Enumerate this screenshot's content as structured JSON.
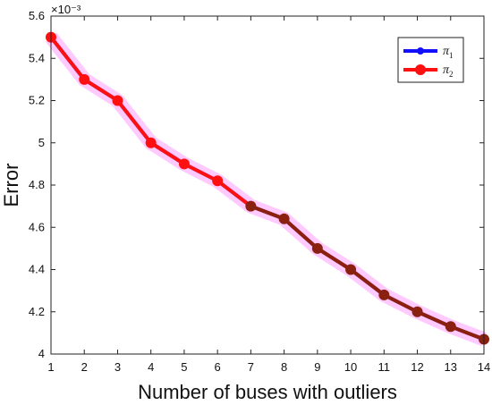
{
  "chart_data": {
    "type": "line",
    "title": "",
    "xlabel": "Number of buses with outliers",
    "ylabel": "Error",
    "y_exponent_label": "×10⁻³",
    "xlim": [
      1,
      14
    ],
    "ylim": [
      4.0,
      5.6
    ],
    "x_ticks": [
      "1",
      "2",
      "3",
      "4",
      "5",
      "6",
      "7",
      "8",
      "9",
      "10",
      "11",
      "12",
      "13",
      "14"
    ],
    "y_ticks": [
      "4",
      "4.2",
      "4.4",
      "4.6",
      "4.8",
      "5",
      "5.2",
      "5.4",
      "5.6"
    ],
    "grid": false,
    "legend_position": "top-right",
    "x": [
      1,
      2,
      3,
      4,
      5,
      6,
      7,
      8,
      9,
      10,
      11,
      12,
      13,
      14
    ],
    "series": [
      {
        "name": "π",
        "subscript": "1",
        "color": "#1010ff",
        "values": [
          5.5,
          5.3,
          5.2,
          5.0,
          4.9,
          4.82,
          4.7,
          4.64,
          4.5,
          4.4,
          4.28,
          4.2,
          4.13,
          4.07
        ]
      },
      {
        "name": "π",
        "subscript": "2",
        "color": "#ff1010",
        "values": [
          5.5,
          5.3,
          5.2,
          5.0,
          4.9,
          4.82,
          4.7,
          4.64,
          4.5,
          4.4,
          4.28,
          4.2,
          4.13,
          4.07
        ]
      }
    ]
  }
}
